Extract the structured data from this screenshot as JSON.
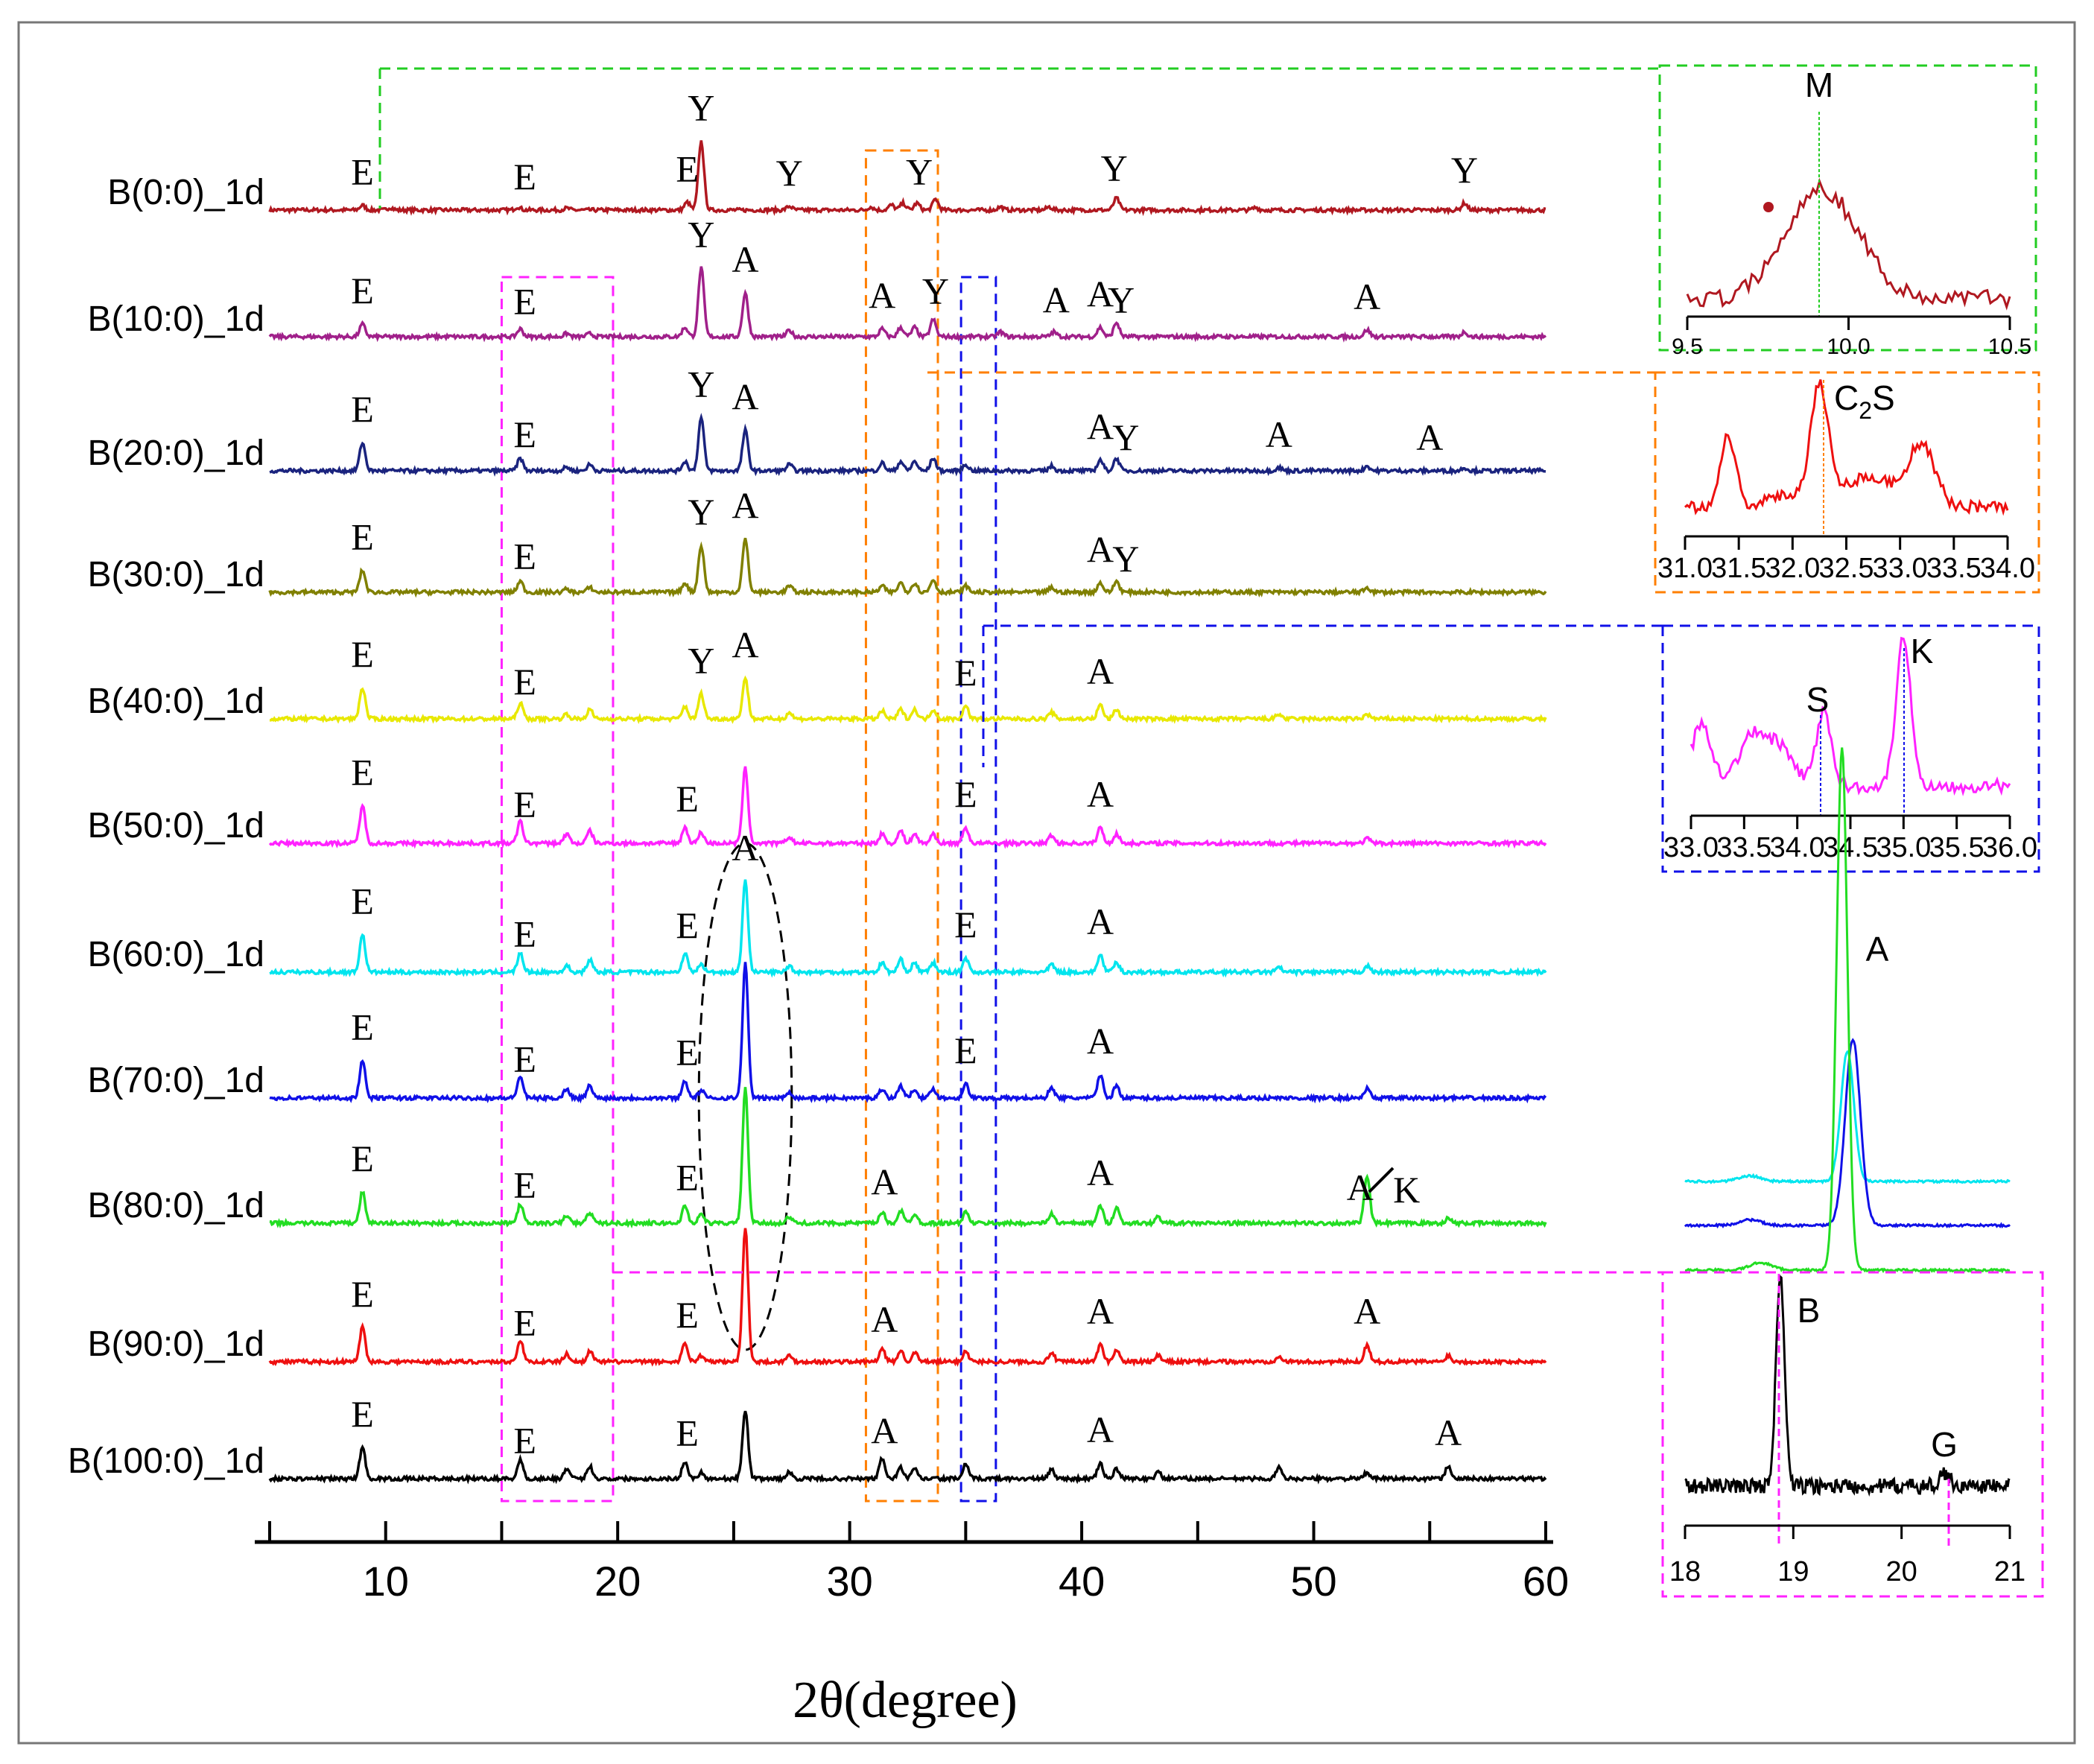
{
  "chart_data": {
    "type": "line",
    "xlabel": "2θ(degree)",
    "xlim": [
      5,
      60
    ],
    "x_ticks": [
      10,
      20,
      30,
      40,
      50,
      60
    ],
    "series": [
      {
        "name": "B(0:0)_1d",
        "color": "#b01820",
        "peaks": [
          [
            9.0,
            0.15
          ],
          [
            10.2,
            0.08
          ],
          [
            15.7,
            0.1
          ],
          [
            17.8,
            0.06
          ],
          [
            23.0,
            0.25
          ],
          [
            23.6,
            2.2
          ],
          [
            27.4,
            0.12
          ],
          [
            30.9,
            0.1
          ],
          [
            31.8,
            0.16
          ],
          [
            32.3,
            0.22
          ],
          [
            32.9,
            0.22
          ],
          [
            33.7,
            0.35
          ],
          [
            36.5,
            0.1
          ],
          [
            38.6,
            0.1
          ],
          [
            41.5,
            0.38
          ],
          [
            47.5,
            0.08
          ],
          [
            56.5,
            0.22
          ]
        ],
        "labels": [
          [
            "E",
            9.0
          ],
          [
            "E",
            16.0
          ],
          [
            "E",
            23.0
          ],
          [
            "Y",
            23.6
          ],
          [
            "Y",
            27.4
          ],
          [
            "Y",
            33.0
          ],
          [
            "Y",
            41.4
          ],
          [
            "Y",
            56.5
          ]
        ]
      },
      {
        "name": "B(10:0)_1d",
        "color": "#a0208a",
        "peaks": [
          [
            9.0,
            0.4
          ],
          [
            15.8,
            0.25
          ],
          [
            17.8,
            0.1
          ],
          [
            18.8,
            0.1
          ],
          [
            22.9,
            0.3
          ],
          [
            23.6,
            2.2
          ],
          [
            25.5,
            1.4
          ],
          [
            27.4,
            0.2
          ],
          [
            31.4,
            0.25
          ],
          [
            32.2,
            0.3
          ],
          [
            32.8,
            0.3
          ],
          [
            33.6,
            0.55
          ],
          [
            36.5,
            0.15
          ],
          [
            38.8,
            0.15
          ],
          [
            40.8,
            0.3
          ],
          [
            41.5,
            0.45
          ],
          [
            52.3,
            0.22
          ],
          [
            56.5,
            0.15
          ]
        ],
        "labels": [
          [
            "E",
            9.0
          ],
          [
            "E",
            16.0
          ],
          [
            "Y",
            23.6
          ],
          [
            "A",
            25.5
          ],
          [
            "A",
            31.4
          ],
          [
            "Y",
            33.7
          ],
          [
            "A",
            38.9
          ],
          [
            "A",
            40.8
          ],
          [
            "Y",
            41.7
          ],
          [
            "A",
            52.3
          ]
        ]
      },
      {
        "name": "B(20:0)_1d",
        "color": "#1a237e",
        "peaks": [
          [
            9.0,
            0.9
          ],
          [
            15.8,
            0.4
          ],
          [
            17.8,
            0.12
          ],
          [
            18.8,
            0.2
          ],
          [
            22.9,
            0.3
          ],
          [
            23.6,
            1.7
          ],
          [
            25.5,
            1.3
          ],
          [
            27.4,
            0.2
          ],
          [
            31.4,
            0.25
          ],
          [
            32.2,
            0.3
          ],
          [
            32.8,
            0.3
          ],
          [
            33.6,
            0.4
          ],
          [
            35.0,
            0.2
          ],
          [
            38.7,
            0.15
          ],
          [
            40.8,
            0.35
          ],
          [
            41.5,
            0.4
          ],
          [
            48.5,
            0.1
          ],
          [
            52.3,
            0.15
          ],
          [
            56.5,
            0.1
          ]
        ],
        "labels": [
          [
            "E",
            9.0
          ],
          [
            "E",
            16.0
          ],
          [
            "Y",
            23.6
          ],
          [
            "A",
            25.5
          ],
          [
            "A",
            40.8
          ],
          [
            "Y",
            41.9
          ],
          [
            "A",
            48.5
          ],
          [
            "A",
            55.0
          ]
        ]
      },
      {
        "name": "B(30:0)_1d",
        "color": "#808000",
        "peaks": [
          [
            9.0,
            0.7
          ],
          [
            15.8,
            0.35
          ],
          [
            17.8,
            0.1
          ],
          [
            18.8,
            0.15
          ],
          [
            22.9,
            0.3
          ],
          [
            23.6,
            1.5
          ],
          [
            25.5,
            1.7
          ],
          [
            27.4,
            0.2
          ],
          [
            31.4,
            0.2
          ],
          [
            32.2,
            0.3
          ],
          [
            32.8,
            0.3
          ],
          [
            33.6,
            0.4
          ],
          [
            35.0,
            0.2
          ],
          [
            38.7,
            0.15
          ],
          [
            40.8,
            0.3
          ],
          [
            41.5,
            0.35
          ],
          [
            52.3,
            0.15
          ]
        ],
        "labels": [
          [
            "E",
            9.0
          ],
          [
            "E",
            16.0
          ],
          [
            "Y",
            23.6
          ],
          [
            "A",
            25.5
          ],
          [
            "A",
            40.8
          ],
          [
            "Y",
            41.9
          ]
        ]
      },
      {
        "name": "B(40:0)_1d",
        "color": "#e8e800",
        "peaks": [
          [
            9.0,
            1.0
          ],
          [
            15.8,
            0.5
          ],
          [
            17.8,
            0.15
          ],
          [
            18.8,
            0.3
          ],
          [
            22.9,
            0.4
          ],
          [
            23.6,
            0.8
          ],
          [
            25.5,
            1.3
          ],
          [
            27.4,
            0.2
          ],
          [
            31.4,
            0.25
          ],
          [
            32.2,
            0.3
          ],
          [
            32.8,
            0.3
          ],
          [
            33.6,
            0.3
          ],
          [
            35.0,
            0.4
          ],
          [
            38.7,
            0.2
          ],
          [
            40.8,
            0.45
          ],
          [
            41.5,
            0.3
          ],
          [
            48.5,
            0.15
          ],
          [
            52.3,
            0.15
          ]
        ],
        "labels": [
          [
            "E",
            9.0
          ],
          [
            "E",
            16.0
          ],
          [
            "Y",
            23.6
          ],
          [
            "A",
            25.5
          ],
          [
            "E",
            35.0
          ],
          [
            "A",
            40.8
          ]
        ]
      },
      {
        "name": "B(50:0)_1d",
        "color": "#ff22ff",
        "peaks": [
          [
            9.0,
            1.2
          ],
          [
            15.8,
            0.7
          ],
          [
            17.8,
            0.3
          ],
          [
            18.8,
            0.4
          ],
          [
            22.9,
            0.5
          ],
          [
            23.6,
            0.35
          ],
          [
            25.5,
            2.4
          ],
          [
            27.4,
            0.2
          ],
          [
            31.4,
            0.3
          ],
          [
            32.2,
            0.4
          ],
          [
            32.8,
            0.3
          ],
          [
            33.6,
            0.3
          ],
          [
            35.0,
            0.5
          ],
          [
            38.7,
            0.25
          ],
          [
            40.8,
            0.5
          ],
          [
            41.5,
            0.3
          ],
          [
            52.3,
            0.15
          ]
        ],
        "labels": [
          [
            "E",
            9.0
          ],
          [
            "E",
            16.0
          ],
          [
            "E",
            23.0
          ],
          [
            "E",
            35.0
          ],
          [
            "A",
            40.8
          ]
        ]
      },
      {
        "name": "B(60:0)_1d",
        "color": "#00e5ee",
        "peaks": [
          [
            9.0,
            1.2
          ],
          [
            15.8,
            0.6
          ],
          [
            17.8,
            0.2
          ],
          [
            18.8,
            0.4
          ],
          [
            22.9,
            0.6
          ],
          [
            23.6,
            0.25
          ],
          [
            25.5,
            2.9
          ],
          [
            27.4,
            0.2
          ],
          [
            31.4,
            0.3
          ],
          [
            32.2,
            0.4
          ],
          [
            32.8,
            0.3
          ],
          [
            33.6,
            0.3
          ],
          [
            35.0,
            0.45
          ],
          [
            38.7,
            0.25
          ],
          [
            40.8,
            0.55
          ],
          [
            41.5,
            0.3
          ],
          [
            48.5,
            0.15
          ],
          [
            52.3,
            0.2
          ]
        ],
        "labels": [
          [
            "E",
            9.0
          ],
          [
            "E",
            16.0
          ],
          [
            "E",
            23.0
          ],
          [
            "A",
            25.5
          ],
          [
            "E",
            35.0
          ],
          [
            "A",
            40.8
          ]
        ]
      },
      {
        "name": "B(70:0)_1d",
        "color": "#1010e8",
        "peaks": [
          [
            9.0,
            1.2
          ],
          [
            15.8,
            0.7
          ],
          [
            17.8,
            0.3
          ],
          [
            18.8,
            0.4
          ],
          [
            22.9,
            0.55
          ],
          [
            23.6,
            0.25
          ],
          [
            25.5,
            4.3
          ],
          [
            27.4,
            0.2
          ],
          [
            31.4,
            0.3
          ],
          [
            32.2,
            0.4
          ],
          [
            32.8,
            0.3
          ],
          [
            33.6,
            0.3
          ],
          [
            35.0,
            0.45
          ],
          [
            38.7,
            0.35
          ],
          [
            40.8,
            0.75
          ],
          [
            41.5,
            0.4
          ],
          [
            52.3,
            0.3
          ]
        ],
        "labels": [
          [
            "E",
            9.0
          ],
          [
            "E",
            16.0
          ],
          [
            "E",
            23.0
          ],
          [
            "E",
            35.0
          ],
          [
            "A",
            40.8
          ]
        ]
      },
      {
        "name": "B(80:0)_1d",
        "color": "#22dd22",
        "peaks": [
          [
            9.0,
            1.0
          ],
          [
            15.8,
            0.6
          ],
          [
            17.8,
            0.25
          ],
          [
            18.8,
            0.35
          ],
          [
            22.9,
            0.55
          ],
          [
            23.6,
            0.3
          ],
          [
            25.5,
            4.3
          ],
          [
            27.4,
            0.2
          ],
          [
            31.4,
            0.35
          ],
          [
            32.2,
            0.4
          ],
          [
            32.8,
            0.3
          ],
          [
            35.0,
            0.35
          ],
          [
            38.7,
            0.3
          ],
          [
            40.8,
            0.55
          ],
          [
            41.5,
            0.5
          ],
          [
            43.3,
            0.2
          ],
          [
            52.3,
            1.5
          ],
          [
            55.8,
            0.15
          ]
        ],
        "labels": [
          [
            "E",
            9.0
          ],
          [
            "E",
            16.0
          ],
          [
            "E",
            23.0
          ],
          [
            "A",
            31.5
          ],
          [
            "A",
            40.8
          ],
          [
            "A",
            52.0
          ],
          [
            "K",
            54.0
          ]
        ]
      },
      {
        "name": "B(90:0)_1d",
        "color": "#ee1010",
        "peaks": [
          [
            9.0,
            1.1
          ],
          [
            15.8,
            0.7
          ],
          [
            17.8,
            0.25
          ],
          [
            18.8,
            0.35
          ],
          [
            22.9,
            0.6
          ],
          [
            23.6,
            0.2
          ],
          [
            25.5,
            4.3
          ],
          [
            27.4,
            0.2
          ],
          [
            31.4,
            0.4
          ],
          [
            32.2,
            0.35
          ],
          [
            32.8,
            0.3
          ],
          [
            35.0,
            0.35
          ],
          [
            38.7,
            0.3
          ],
          [
            40.8,
            0.55
          ],
          [
            41.5,
            0.4
          ],
          [
            43.3,
            0.2
          ],
          [
            48.5,
            0.2
          ],
          [
            52.3,
            0.55
          ],
          [
            55.8,
            0.2
          ]
        ],
        "labels": [
          [
            "E",
            9.0
          ],
          [
            "E",
            16.0
          ],
          [
            "E",
            23.0
          ],
          [
            "A",
            31.5
          ],
          [
            "A",
            40.8
          ],
          [
            "A",
            52.3
          ]
        ]
      },
      {
        "name": "B(100:0)_1d",
        "color": "#000000",
        "peaks": [
          [
            9.0,
            1.0
          ],
          [
            15.8,
            0.6
          ],
          [
            17.8,
            0.3
          ],
          [
            18.8,
            0.4
          ],
          [
            22.9,
            0.55
          ],
          [
            23.6,
            0.2
          ],
          [
            25.5,
            2.2
          ],
          [
            27.4,
            0.2
          ],
          [
            31.4,
            0.65
          ],
          [
            32.2,
            0.35
          ],
          [
            32.8,
            0.3
          ],
          [
            35.0,
            0.45
          ],
          [
            38.7,
            0.3
          ],
          [
            40.8,
            0.5
          ],
          [
            41.5,
            0.3
          ],
          [
            43.3,
            0.2
          ],
          [
            48.5,
            0.35
          ],
          [
            52.3,
            0.2
          ],
          [
            55.8,
            0.4
          ]
        ],
        "labels": [
          [
            "E",
            9.0
          ],
          [
            "E",
            16.0
          ],
          [
            "E",
            23.0
          ],
          [
            "A",
            31.5
          ],
          [
            "A",
            40.8
          ],
          [
            "A",
            55.8
          ]
        ]
      }
    ],
    "highlight_regions": [
      {
        "name": "magenta-box",
        "color": "#ff22ff",
        "x_range": [
          15.0,
          19.8
        ],
        "series_range": [
          1,
          10
        ]
      },
      {
        "name": "orange-box",
        "color": "#ff7f00",
        "x_range": [
          30.7,
          33.8
        ],
        "series_range": [
          0,
          10
        ]
      },
      {
        "name": "blue-box",
        "color": "#1010e8",
        "x_range": [
          34.8,
          36.3
        ],
        "series_range": [
          1,
          10
        ]
      }
    ],
    "ellipse": {
      "x_center": 25.5,
      "x_halfwidth": 2.0
    },
    "insets": [
      {
        "name": "inset-M",
        "color": "#b01820",
        "xlim": [
          9.5,
          10.5
        ],
        "ticks": [
          "9.5",
          "10.0",
          "10.5"
        ],
        "labels": [
          "M"
        ]
      },
      {
        "name": "inset-C2S",
        "color": "#ee1010",
        "xlim": [
          31.0,
          34.0
        ],
        "ticks": [
          "31.0",
          "31.5",
          "32.0",
          "32.5",
          "33.0",
          "33.5",
          "34.0"
        ],
        "labels": [
          "C2S"
        ]
      },
      {
        "name": "inset-SK",
        "color": "#ff22ff",
        "xlim": [
          33.0,
          36.0
        ],
        "ticks": [
          "33.0",
          "33.5",
          "34.0",
          "34.5",
          "35.0",
          "35.5",
          "36.0"
        ],
        "labels": [
          "S",
          "K"
        ]
      },
      {
        "name": "inset-A",
        "colors": [
          "#00e5ee",
          "#1010e8",
          "#22dd22"
        ],
        "labels": [
          "A"
        ]
      },
      {
        "name": "inset-BG",
        "color": "#000000",
        "xlim": [
          18,
          21
        ],
        "ticks": [
          "18",
          "19",
          "20",
          "21"
        ],
        "labels": [
          "B",
          "G"
        ]
      }
    ]
  }
}
